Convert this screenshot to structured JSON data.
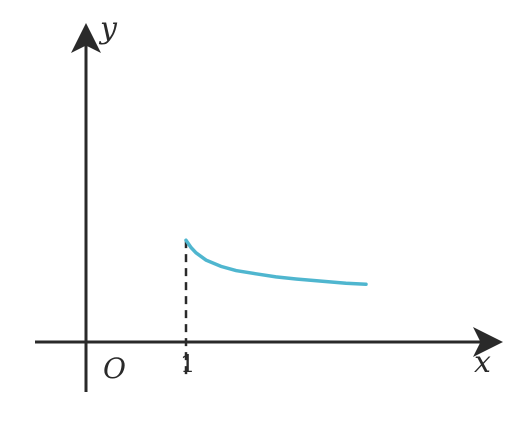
{
  "chart_data": {
    "type": "line",
    "x_axis_label": "x",
    "y_axis_label": "y",
    "origin_label": "O",
    "x_tick_labels": [
      "1"
    ],
    "curve_color": "#4fb6cf",
    "axis_color": "#2a2a2a",
    "x_range": [
      -0.6,
      2.9
    ],
    "y_range": [
      -0.5,
      2.9
    ],
    "asymptote_marker": {
      "x": 1,
      "style": "dashed"
    },
    "series": [
      {
        "points": [
          {
            "x": 1.0,
            "y": 0.97
          },
          {
            "x": 1.05,
            "y": 0.9
          },
          {
            "x": 1.1,
            "y": 0.85
          },
          {
            "x": 1.2,
            "y": 0.78
          },
          {
            "x": 1.35,
            "y": 0.72
          },
          {
            "x": 1.5,
            "y": 0.68
          },
          {
            "x": 1.7,
            "y": 0.65
          },
          {
            "x": 1.9,
            "y": 0.62
          },
          {
            "x": 2.1,
            "y": 0.6
          },
          {
            "x": 2.35,
            "y": 0.58
          },
          {
            "x": 2.6,
            "y": 0.56
          },
          {
            "x": 2.8,
            "y": 0.55
          }
        ]
      }
    ]
  }
}
